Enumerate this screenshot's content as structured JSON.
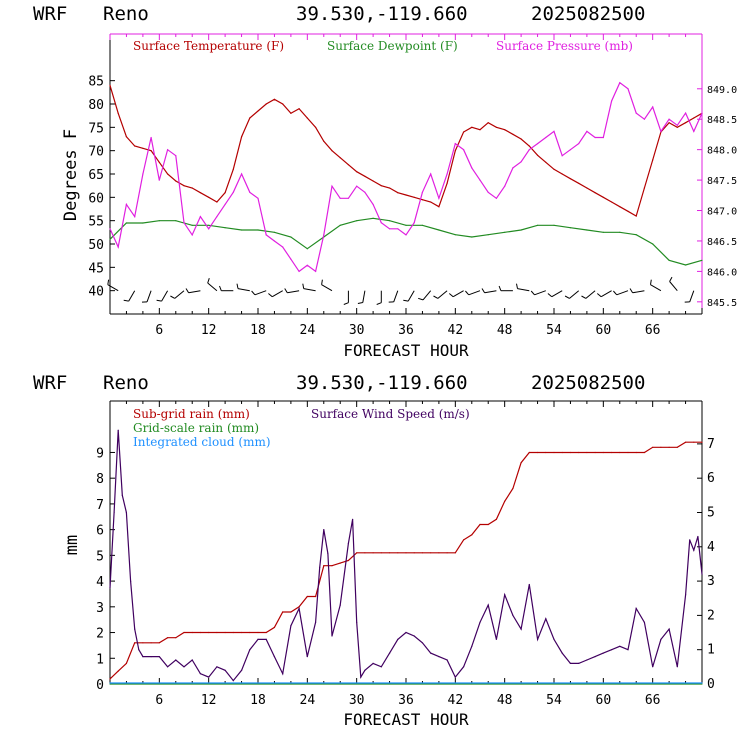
{
  "chart_data": [
    {
      "type": "line",
      "header": {
        "model": "WRF",
        "location": "Reno",
        "coords": "39.530,-119.660",
        "run": "2025082500"
      },
      "xlabel": "FORECAST HOUR",
      "ylabel": "Degrees F",
      "xlim": [
        0,
        72
      ],
      "ylim": [
        35,
        95
      ],
      "y2lim": [
        845.3,
        849.9
      ],
      "x_ticks": [
        "6",
        "12",
        "18",
        "24",
        "30",
        "36",
        "42",
        "48",
        "54",
        "60",
        "66"
      ],
      "y_ticks": [
        "40",
        "45",
        "50",
        "55",
        "60",
        "65",
        "70",
        "75",
        "80",
        "85"
      ],
      "y2_ticks": [
        "845.5",
        "846.0",
        "846.5",
        "847.0",
        "847.5",
        "848.0",
        "848.5",
        "849.0"
      ],
      "colors": {
        "temp": "#b40000",
        "dewpoint": "#228b22",
        "pressure": "#e020e0",
        "wind": "#000000"
      },
      "series": [
        {
          "name": "Surface Temperature (F)",
          "axis": "left",
          "x": [
            0,
            1,
            2,
            3,
            4,
            5,
            6,
            7,
            8,
            9,
            10,
            11,
            12,
            13,
            14,
            15,
            16,
            17,
            18,
            19,
            20,
            21,
            22,
            23,
            24,
            25,
            26,
            27,
            28,
            29,
            30,
            31,
            32,
            33,
            34,
            35,
            36,
            37,
            38,
            39,
            40,
            41,
            42,
            43,
            44,
            45,
            46,
            47,
            48,
            49,
            50,
            51,
            52,
            53,
            54,
            55,
            56,
            57,
            58,
            59,
            60,
            61,
            62,
            63,
            64,
            65,
            66,
            67,
            68,
            69,
            70,
            71,
            72
          ],
          "y": [
            84,
            78,
            73,
            71,
            70.5,
            70,
            67.5,
            65,
            63.5,
            62.5,
            62,
            61,
            60,
            59,
            61,
            66,
            73,
            77,
            78.5,
            80,
            81,
            80,
            78,
            79,
            77,
            75,
            72,
            70,
            68.5,
            67,
            65.5,
            64.5,
            63.5,
            62.5,
            62,
            61,
            60.5,
            60,
            59.5,
            59,
            58,
            63,
            70,
            74,
            75,
            74.5,
            76,
            75,
            74.5,
            73.5,
            72.5,
            71,
            69,
            67.5,
            66,
            65,
            64,
            63,
            62,
            61,
            60,
            59,
            58,
            57,
            56,
            62,
            68,
            74,
            76,
            75,
            76,
            77,
            78
          ]
        },
        {
          "name": "Surface Dewpoint (F)",
          "axis": "left",
          "x": [
            0,
            2,
            4,
            6,
            8,
            10,
            12,
            14,
            16,
            18,
            20,
            22,
            24,
            26,
            28,
            30,
            32,
            34,
            36,
            38,
            40,
            42,
            44,
            46,
            48,
            50,
            52,
            54,
            56,
            58,
            60,
            62,
            64,
            66,
            68,
            70,
            72
          ],
          "y": [
            51,
            54.5,
            54.5,
            55,
            55,
            54,
            54,
            53.5,
            53,
            53,
            52.5,
            51.5,
            49,
            51.5,
            54,
            55,
            55.5,
            55,
            54,
            54,
            53,
            52,
            51.5,
            52,
            52.5,
            53,
            54,
            54,
            53.5,
            53,
            52.5,
            52.5,
            52,
            50,
            46.5,
            45.5,
            46.5
          ]
        },
        {
          "name": "Surface Pressure (mb)",
          "axis": "right",
          "x": [
            0,
            1,
            2,
            3,
            4,
            5,
            6,
            7,
            8,
            9,
            10,
            11,
            12,
            13,
            14,
            15,
            16,
            17,
            18,
            19,
            20,
            21,
            22,
            23,
            24,
            25,
            26,
            27,
            28,
            29,
            30,
            31,
            32,
            33,
            34,
            35,
            36,
            37,
            38,
            39,
            40,
            41,
            42,
            43,
            44,
            45,
            46,
            47,
            48,
            49,
            50,
            51,
            52,
            53,
            54,
            55,
            56,
            57,
            58,
            59,
            60,
            61,
            62,
            63,
            64,
            65,
            66,
            67,
            68,
            69,
            70,
            71,
            72
          ],
          "y": [
            846.7,
            846.4,
            847.1,
            846.9,
            847.6,
            848.2,
            847.5,
            848,
            847.9,
            846.8,
            846.6,
            846.9,
            846.7,
            846.9,
            847.1,
            847.3,
            847.6,
            847.3,
            847.2,
            846.6,
            846.5,
            846.4,
            846.2,
            846,
            846.1,
            846,
            846.6,
            847.4,
            847.2,
            847.2,
            847.4,
            847.3,
            847.1,
            846.8,
            846.7,
            846.7,
            846.6,
            846.8,
            847.3,
            847.6,
            847.2,
            847.6,
            848.1,
            848,
            847.7,
            847.5,
            847.3,
            847.2,
            847.4,
            847.7,
            847.8,
            848,
            848.1,
            848.2,
            848.3,
            847.9,
            848,
            848.1,
            848.3,
            848.2,
            848.2,
            848.8,
            849.1,
            849,
            848.6,
            848.5,
            848.7,
            848.3,
            848.5,
            848.4,
            848.6,
            848.3,
            848.6
          ]
        }
      ],
      "wind_barbs_note": "Surface wind barbs row",
      "wind_barbs": {
        "y_level": 40,
        "x": [
          1,
          3,
          5,
          7,
          9,
          11,
          13,
          15,
          17,
          19,
          21,
          23,
          25,
          27,
          29,
          31,
          33,
          35,
          37,
          39,
          41,
          43,
          45,
          47,
          49,
          51,
          53,
          55,
          57,
          59,
          61,
          63,
          65,
          67,
          69,
          71
        ],
        "direction_deg": [
          300,
          210,
          200,
          210,
          230,
          260,
          310,
          270,
          280,
          250,
          240,
          260,
          280,
          300,
          180,
          190,
          180,
          200,
          210,
          220,
          230,
          240,
          250,
          260,
          270,
          280,
          250,
          240,
          230,
          230,
          240,
          250,
          260,
          300,
          320,
          200
        ]
      }
    },
    {
      "type": "line",
      "header": {
        "model": "WRF",
        "location": "Reno",
        "coords": "39.530,-119.660",
        "run": "2025082500"
      },
      "xlabel": "FORECAST HOUR",
      "ylabel": "mm",
      "xlim": [
        0,
        72
      ],
      "ylim": [
        0,
        11
      ],
      "y2lim": [
        0,
        8.25
      ],
      "x_ticks": [
        "6",
        "12",
        "18",
        "24",
        "30",
        "36",
        "42",
        "48",
        "54",
        "60",
        "66"
      ],
      "y_ticks": [
        "0",
        "1",
        "2",
        "3",
        "4",
        "5",
        "6",
        "7",
        "8",
        "9"
      ],
      "y2_ticks": [
        "0",
        "1",
        "2",
        "3",
        "4",
        "5",
        "6",
        "7"
      ],
      "colors": {
        "subgrid": "#b40000",
        "gridscale": "#228b22",
        "cloud": "#1e90ff",
        "wind": "#400060"
      },
      "series": [
        {
          "name": "Sub-grid rain (mm)",
          "axis": "left",
          "x": [
            0,
            1,
            2,
            3,
            4,
            5,
            6,
            7,
            8,
            9,
            10,
            11,
            12,
            13,
            14,
            15,
            16,
            17,
            18,
            19,
            20,
            21,
            22,
            23,
            24,
            25,
            26,
            27,
            28,
            29,
            30,
            31,
            32,
            33,
            34,
            35,
            36,
            37,
            38,
            39,
            40,
            41,
            42,
            43,
            44,
            45,
            46,
            47,
            48,
            49,
            50,
            51,
            52,
            53,
            54,
            55,
            56,
            57,
            58,
            59,
            60,
            61,
            62,
            63,
            64,
            65,
            66,
            67,
            68,
            69,
            70,
            71,
            72
          ],
          "y": [
            0.2,
            0.5,
            0.8,
            1.6,
            1.6,
            1.6,
            1.6,
            1.8,
            1.8,
            2,
            2,
            2,
            2,
            2,
            2,
            2,
            2,
            2,
            2,
            2,
            2.2,
            2.8,
            2.8,
            3,
            3.4,
            3.4,
            4.6,
            4.6,
            4.7,
            4.8,
            5.1,
            5.1,
            5.1,
            5.1,
            5.1,
            5.1,
            5.1,
            5.1,
            5.1,
            5.1,
            5.1,
            5.1,
            5.1,
            5.6,
            5.8,
            6.2,
            6.2,
            6.4,
            7.1,
            7.6,
            8.6,
            9,
            9,
            9,
            9,
            9,
            9,
            9,
            9,
            9,
            9,
            9,
            9,
            9,
            9,
            9,
            9.2,
            9.2,
            9.2,
            9.2,
            9.4,
            9.4,
            9.4
          ]
        },
        {
          "name": "Grid-scale rain (mm)",
          "axis": "left",
          "x": [
            0,
            72
          ],
          "y": [
            0,
            0
          ]
        },
        {
          "name": "Integrated cloud (mm)",
          "axis": "left",
          "x": [
            0,
            72
          ],
          "y": [
            0.04,
            0.04
          ]
        },
        {
          "name": "Surface Wind Speed (m/s)",
          "axis": "right",
          "x": [
            0,
            0.5,
            1,
            1.5,
            2,
            2.5,
            3,
            3.5,
            4,
            5,
            6,
            7,
            8,
            9,
            10,
            11,
            12,
            13,
            14,
            15,
            16,
            17,
            18,
            19,
            20,
            21,
            22,
            23,
            24,
            25,
            25.5,
            26,
            26.5,
            27,
            28,
            29,
            29.5,
            30,
            30.5,
            31,
            32,
            33,
            34,
            35,
            36,
            37,
            38,
            39,
            40,
            41,
            42,
            43,
            44,
            45,
            46,
            47,
            48,
            49,
            50,
            51,
            52,
            53,
            54,
            55,
            56,
            57,
            58,
            59,
            60,
            61,
            62,
            63,
            64,
            65,
            66,
            67,
            68,
            69,
            70,
            70.5,
            71,
            71.5,
            72
          ],
          "y": [
            2.8,
            5,
            7.4,
            5.5,
            5,
            3,
            1.6,
            1,
            0.8,
            0.8,
            0.8,
            0.5,
            0.7,
            0.5,
            0.7,
            0.3,
            0.2,
            0.5,
            0.4,
            0.1,
            0.4,
            1,
            1.3,
            1.3,
            0.8,
            0.3,
            1.7,
            2.2,
            0.8,
            1.8,
            3.4,
            4.5,
            3.8,
            1.4,
            2.3,
            4.1,
            4.8,
            1.8,
            0.2,
            0.4,
            0.6,
            0.5,
            0.9,
            1.3,
            1.5,
            1.4,
            1.2,
            0.9,
            0.8,
            0.7,
            0.2,
            0.5,
            1.1,
            1.8,
            2.3,
            1.3,
            2.6,
            2,
            1.6,
            2.9,
            1.3,
            1.9,
            1.3,
            0.9,
            0.6,
            0.6,
            0.7,
            0.8,
            0.9,
            1,
            1.1,
            1,
            2.2,
            1.8,
            0.5,
            1.3,
            1.6,
            0.5,
            2.6,
            4.2,
            3.9,
            4.3,
            3.2
          ]
        }
      ]
    }
  ]
}
